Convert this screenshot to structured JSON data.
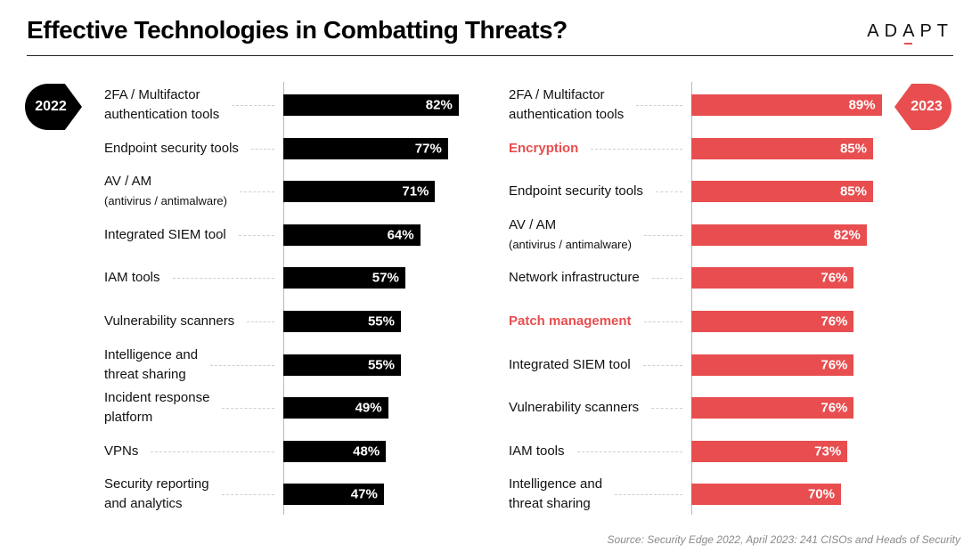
{
  "header": {
    "title": "Effective Technologies in Combatting Threats?",
    "logo_text_1": "AD",
    "logo_text_2": "A",
    "logo_text_3": "PT"
  },
  "colors": {
    "year_2022": "#000000",
    "year_2023": "#e84e4f",
    "highlight_text": "#e84e4f"
  },
  "source": "Source: Security Edge 2022, April 2023: 241 CISOs and Heads of Security",
  "chart_data": [
    {
      "type": "bar",
      "orientation": "horizontal",
      "badge": "2022",
      "xlim": [
        0,
        100
      ],
      "grid": false,
      "categories": [
        {
          "line1": "2FA / Multifactor",
          "line2": "authentication tools",
          "small2": false
        },
        {
          "line1": "Endpoint security tools",
          "line2": "",
          "small2": false
        },
        {
          "line1": "AV / AM",
          "line2": "(antivirus / antimalware)",
          "small2": true
        },
        {
          "line1": "Integrated SIEM tool",
          "line2": "",
          "small2": false
        },
        {
          "line1": "IAM tools",
          "line2": "",
          "small2": false
        },
        {
          "line1": "Vulnerability scanners",
          "line2": "",
          "small2": false
        },
        {
          "line1": "Intelligence and",
          "line2": "threat sharing",
          "small2": false
        },
        {
          "line1": "Incident response",
          "line2": "platform",
          "small2": false
        },
        {
          "line1": "VPNs",
          "line2": "",
          "small2": false
        },
        {
          "line1": "Security reporting",
          "line2": "and analytics",
          "small2": false
        }
      ],
      "values": [
        82,
        77,
        71,
        64,
        57,
        55,
        55,
        49,
        48,
        47
      ],
      "value_labels": [
        "82%",
        "77%",
        "71%",
        "64%",
        "57%",
        "55%",
        "55%",
        "49%",
        "48%",
        "47%"
      ],
      "highlighted": [
        false,
        false,
        false,
        false,
        false,
        false,
        false,
        false,
        false,
        false
      ]
    },
    {
      "type": "bar",
      "orientation": "horizontal",
      "badge": "2023",
      "xlim": [
        0,
        100
      ],
      "grid": false,
      "categories": [
        {
          "line1": "2FA / Multifactor",
          "line2": "authentication tools",
          "small2": false
        },
        {
          "line1": "Encryption",
          "line2": "",
          "small2": false
        },
        {
          "line1": "Endpoint security tools",
          "line2": "",
          "small2": false
        },
        {
          "line1": "AV / AM",
          "line2": "(antivirus / antimalware)",
          "small2": true
        },
        {
          "line1": "Network infrastructure",
          "line2": "",
          "small2": false
        },
        {
          "line1": "Patch management",
          "line2": "",
          "small2": false
        },
        {
          "line1": "Integrated SIEM tool",
          "line2": "",
          "small2": false
        },
        {
          "line1": "Vulnerability scanners",
          "line2": "",
          "small2": false
        },
        {
          "line1": "IAM tools",
          "line2": "",
          "small2": false
        },
        {
          "line1": "Intelligence and",
          "line2": "threat sharing",
          "small2": false
        }
      ],
      "values": [
        89,
        85,
        85,
        82,
        76,
        76,
        76,
        76,
        73,
        70
      ],
      "value_labels": [
        "89%",
        "85%",
        "85%",
        "82%",
        "76%",
        "76%",
        "76%",
        "76%",
        "73%",
        "70%"
      ],
      "highlighted": [
        false,
        true,
        false,
        false,
        false,
        true,
        false,
        false,
        false,
        false
      ]
    }
  ]
}
